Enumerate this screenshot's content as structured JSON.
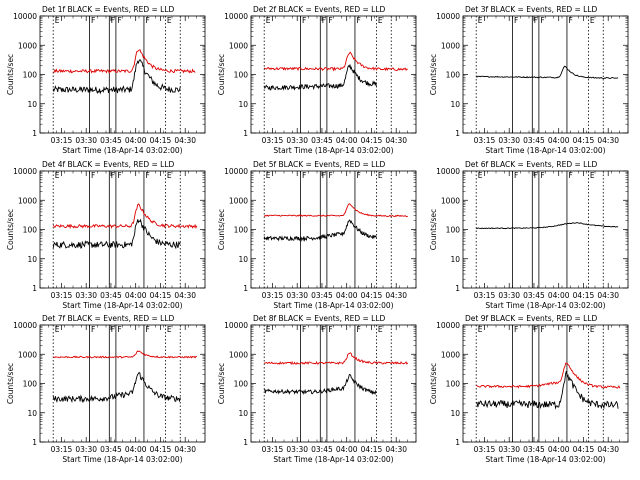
{
  "figure": {
    "panel_titles": [
      "Det 1f BLACK = Events, RED = LLD",
      "Det 2f BLACK = Events, RED = LLD",
      "Det 3f BLACK = Events, RED = LLD",
      "Det 4f BLACK = Events, RED = LLD",
      "Det 5f BLACK = Events, RED = LLD",
      "Det 6f BLACK = Events, RED = LLD",
      "Det 7f BLACK = Events, RED = LLD",
      "Det 8f BLACK = Events, RED = LLD",
      "Det 9f BLACK = Events, RED = LLD"
    ],
    "ylabel": "Counts/sec",
    "xlabel": "Start Time (18-Apr-14 03:02:00)",
    "x_ticks": [
      "03:15",
      "03:30",
      "03:45",
      "04:00",
      "04:15",
      "04:30"
    ],
    "y_ticks": [
      "1",
      "10",
      "100",
      "1000",
      "10000"
    ],
    "event_markers": [
      "E",
      "F",
      "F",
      "F",
      "F",
      "E"
    ],
    "colors": {
      "events": "#000000",
      "lld": "#dd0000",
      "axes": "#000000"
    }
  },
  "chart_data": [
    {
      "type": "line",
      "title": "Det 1f BLACK = Events, RED = LLD",
      "ylabel": "Counts/sec",
      "xlabel": "Start Time (18-Apr-14 03:02:00)",
      "xlim": [
        "03:02",
        "04:42"
      ],
      "ylim": [
        1,
        10000
      ],
      "yscale": "log",
      "x_ticks": [
        "03:15",
        "03:30",
        "03:45",
        "04:00",
        "04:15",
        "04:30"
      ],
      "series": [
        {
          "name": "Events",
          "color": "#000000",
          "start": "03:10",
          "end": "04:27",
          "base": 30,
          "end_value": 30,
          "peak": 330,
          "peak_time": "04:02",
          "noise": 0.25
        },
        {
          "name": "LLD",
          "color": "#dd0000",
          "start": "03:10",
          "end": "04:36",
          "base": 130,
          "end_value": 130,
          "peak": 750,
          "peak_time": "04:02",
          "noise": 0.12
        }
      ],
      "vlines_solid": [
        "03:32",
        "03:44",
        "03:48",
        "04:05"
      ],
      "vlines_dotted": [
        "03:10",
        "04:18",
        "04:27"
      ]
    },
    {
      "type": "line",
      "title": "Det 2f BLACK = Events, RED = LLD",
      "ylabel": "Counts/sec",
      "xlabel": "Start Time (18-Apr-14 03:02:00)",
      "xlim": [
        "03:02",
        "04:42"
      ],
      "ylim": [
        1,
        10000
      ],
      "yscale": "log",
      "x_ticks": [
        "03:15",
        "03:30",
        "03:45",
        "04:00",
        "04:15",
        "04:30"
      ],
      "series": [
        {
          "name": "Events",
          "color": "#000000",
          "start": "03:10",
          "end": "04:18",
          "base": 35,
          "end_value": 45,
          "peak": 200,
          "peak_time": "04:02",
          "noise": 0.18
        },
        {
          "name": "LLD",
          "color": "#dd0000",
          "start": "03:10",
          "end": "04:37",
          "base": 160,
          "end_value": 150,
          "peak": 550,
          "peak_time": "04:02",
          "noise": 0.1
        }
      ],
      "vlines_solid": [
        "03:32",
        "03:44",
        "03:48",
        "04:05"
      ],
      "vlines_dotted": [
        "03:10",
        "04:18",
        "04:27"
      ]
    },
    {
      "type": "line",
      "title": "Det 3f BLACK = Events, RED = LLD",
      "ylabel": "Counts/sec",
      "xlabel": "Start Time (18-Apr-14 03:02:00)",
      "xlim": [
        "03:02",
        "04:42"
      ],
      "ylim": [
        1,
        10000
      ],
      "yscale": "log",
      "x_ticks": [
        "03:15",
        "03:30",
        "03:45",
        "04:00",
        "04:15",
        "04:30"
      ],
      "series": [
        {
          "name": "Events",
          "color": "#000000",
          "start": "03:10",
          "end": "04:36",
          "base": 85,
          "end_value": 75,
          "peak": 190,
          "peak_time": "04:04",
          "noise": 0.04
        }
      ],
      "vlines_solid": [
        "03:32",
        "03:44",
        "03:48",
        "04:05"
      ],
      "vlines_dotted": [
        "03:10",
        "04:18",
        "04:27"
      ]
    },
    {
      "type": "line",
      "title": "Det 4f BLACK = Events, RED = LLD",
      "ylabel": "Counts/sec",
      "xlabel": "Start Time (18-Apr-14 03:02:00)",
      "xlim": [
        "03:02",
        "04:42"
      ],
      "ylim": [
        1,
        10000
      ],
      "yscale": "log",
      "x_ticks": [
        "03:15",
        "03:30",
        "03:45",
        "04:00",
        "04:15",
        "04:30"
      ],
      "series": [
        {
          "name": "Events",
          "color": "#000000",
          "start": "03:10",
          "end": "04:27",
          "base": 30,
          "end_value": 30,
          "peak": 230,
          "peak_time": "04:02",
          "noise": 0.25
        },
        {
          "name": "LLD",
          "color": "#dd0000",
          "start": "03:10",
          "end": "04:37",
          "base": 130,
          "end_value": 130,
          "peak": 700,
          "peak_time": "04:02",
          "noise": 0.12
        }
      ],
      "vlines_solid": [
        "03:32",
        "03:44",
        "03:48",
        "04:05"
      ],
      "vlines_dotted": [
        "03:10",
        "04:18",
        "04:27"
      ]
    },
    {
      "type": "line",
      "title": "Det 5f BLACK = Events, RED = LLD",
      "ylabel": "Counts/sec",
      "xlabel": "Start Time (18-Apr-14 03:02:00)",
      "xlim": [
        "03:02",
        "04:42"
      ],
      "ylim": [
        1,
        10000
      ],
      "yscale": "log",
      "x_ticks": [
        "03:15",
        "03:30",
        "03:45",
        "04:00",
        "04:15",
        "04:30"
      ],
      "series": [
        {
          "name": "Events",
          "color": "#000000",
          "start": "03:10",
          "end": "04:18",
          "base": 50,
          "end_value": 50,
          "peak": 210,
          "peak_time": "04:02",
          "noise": 0.15,
          "hump": 1.4
        },
        {
          "name": "LLD",
          "color": "#dd0000",
          "start": "03:10",
          "end": "04:37",
          "base": 300,
          "end_value": 290,
          "peak": 780,
          "peak_time": "04:02",
          "noise": 0.05
        }
      ],
      "vlines_solid": [
        "03:32",
        "03:44",
        "03:48",
        "04:05"
      ],
      "vlines_dotted": [
        "03:10",
        "04:18",
        "04:27"
      ]
    },
    {
      "type": "line",
      "title": "Det 6f BLACK = Events, RED = LLD",
      "ylabel": "Counts/sec",
      "xlabel": "Start Time (18-Apr-14 03:02:00)",
      "xlim": [
        "03:02",
        "04:42"
      ],
      "ylim": [
        1,
        10000
      ],
      "yscale": "log",
      "x_ticks": [
        "03:15",
        "03:30",
        "03:45",
        "04:00",
        "04:15",
        "04:30"
      ],
      "series": [
        {
          "name": "Events",
          "color": "#000000",
          "start": "03:10",
          "end": "04:36",
          "base": 110,
          "end_value": 115,
          "peak": 170,
          "peak_time": "04:12",
          "noise": 0.03,
          "broad": true
        }
      ],
      "vlines_solid": [
        "03:32",
        "03:44",
        "03:48",
        "04:05"
      ],
      "vlines_dotted": [
        "03:10",
        "04:18",
        "04:27"
      ]
    },
    {
      "type": "line",
      "title": "Det 7f BLACK = Events, RED = LLD",
      "ylabel": "Counts/sec",
      "xlabel": "Start Time (18-Apr-14 03:02:00)",
      "xlim": [
        "03:02",
        "04:42"
      ],
      "ylim": [
        1,
        10000
      ],
      "yscale": "log",
      "x_ticks": [
        "03:15",
        "03:30",
        "03:45",
        "04:00",
        "04:15",
        "04:30"
      ],
      "series": [
        {
          "name": "Events",
          "color": "#000000",
          "start": "03:10",
          "end": "04:27",
          "base": 30,
          "end_value": 30,
          "peak": 220,
          "peak_time": "04:02",
          "noise": 0.22,
          "hump": 1.5
        },
        {
          "name": "LLD",
          "color": "#dd0000",
          "start": "03:10",
          "end": "04:37",
          "base": 800,
          "end_value": 800,
          "peak": 1300,
          "peak_time": "04:02",
          "noise": 0.06
        }
      ],
      "vlines_solid": [
        "03:32",
        "03:44",
        "03:48",
        "04:05"
      ],
      "vlines_dotted": [
        "03:10",
        "04:18",
        "04:27"
      ]
    },
    {
      "type": "line",
      "title": "Det 8f BLACK = Events, RED = LLD",
      "ylabel": "Counts/sec",
      "xlabel": "Start Time (18-Apr-14 03:02:00)",
      "xlim": [
        "03:02",
        "04:42"
      ],
      "ylim": [
        1,
        10000
      ],
      "yscale": "log",
      "x_ticks": [
        "03:15",
        "03:30",
        "03:45",
        "04:00",
        "04:15",
        "04:30"
      ],
      "series": [
        {
          "name": "Events",
          "color": "#000000",
          "start": "03:10",
          "end": "04:18",
          "base": 55,
          "end_value": 45,
          "peak": 180,
          "peak_time": "04:02",
          "noise": 0.14,
          "hump": 1.4
        },
        {
          "name": "LLD",
          "color": "#dd0000",
          "start": "03:10",
          "end": "04:37",
          "base": 500,
          "end_value": 500,
          "peak": 1100,
          "peak_time": "04:02",
          "noise": 0.08
        }
      ],
      "vlines_solid": [
        "03:32",
        "03:44",
        "03:48",
        "04:05"
      ],
      "vlines_dotted": [
        "03:10",
        "04:18",
        "04:27"
      ]
    },
    {
      "type": "line",
      "title": "Det 9f BLACK = Events, RED = LLD",
      "ylabel": "Counts/sec",
      "xlabel": "Start Time (18-Apr-14 03:02:00)",
      "xlim": [
        "03:02",
        "04:42"
      ],
      "ylim": [
        1,
        10000
      ],
      "yscale": "log",
      "x_ticks": [
        "03:15",
        "03:30",
        "03:45",
        "04:00",
        "04:15",
        "04:30"
      ],
      "series": [
        {
          "name": "Events",
          "color": "#000000",
          "start": "03:10",
          "end": "04:36",
          "base": 20,
          "end_value": 18,
          "peak": 210,
          "peak_time": "04:05",
          "noise": 0.28
        },
        {
          "name": "LLD",
          "color": "#dd0000",
          "start": "03:10",
          "end": "04:37",
          "base": 80,
          "end_value": 75,
          "peak": 520,
          "peak_time": "04:05",
          "noise": 0.08,
          "hump": 1.4
        }
      ],
      "vlines_solid": [
        "03:32",
        "03:44",
        "03:48",
        "04:05"
      ],
      "vlines_dotted": [
        "03:10",
        "04:18",
        "04:27"
      ]
    }
  ]
}
